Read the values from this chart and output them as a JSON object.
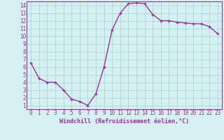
{
  "x": [
    0,
    1,
    2,
    3,
    4,
    5,
    6,
    7,
    8,
    9,
    10,
    11,
    12,
    13,
    14,
    15,
    16,
    17,
    18,
    19,
    20,
    21,
    22,
    23
  ],
  "y": [
    6.5,
    4.5,
    4.0,
    4.0,
    3.0,
    1.8,
    1.5,
    1.0,
    2.5,
    6.0,
    10.8,
    13.0,
    14.2,
    14.3,
    14.2,
    12.8,
    12.0,
    12.0,
    11.8,
    11.7,
    11.6,
    11.6,
    11.2,
    10.3
  ],
  "line_color": "#993399",
  "marker": "+",
  "marker_color": "#993399",
  "bg_color": "#d4f0f0",
  "grid_color": "#aad8d8",
  "axis_label_color": "#993399",
  "tick_color": "#993399",
  "border_color": "#993399",
  "xlabel": "Windchill (Refroidissement éolien,°C)",
  "xlim": [
    -0.5,
    23.5
  ],
  "ylim": [
    0.5,
    14.5
  ],
  "yticks": [
    1,
    2,
    3,
    4,
    5,
    6,
    7,
    8,
    9,
    10,
    11,
    12,
    13,
    14
  ],
  "xticks": [
    0,
    1,
    2,
    3,
    4,
    5,
    6,
    7,
    8,
    9,
    10,
    11,
    12,
    13,
    14,
    15,
    16,
    17,
    18,
    19,
    20,
    21,
    22,
    23
  ],
  "linewidth": 1.0,
  "markersize": 3.5,
  "tick_fontsize": 5.5,
  "xlabel_fontsize": 6.0
}
